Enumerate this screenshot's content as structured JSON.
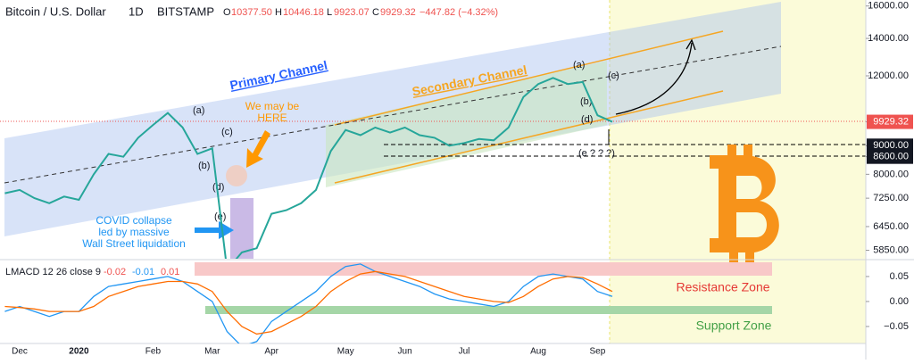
{
  "chart_data": [
    {
      "type": "line",
      "log": true,
      "header": {
        "title": "Bitcoin / U.S. Dollar",
        "interval": "1D",
        "exchange": "BITSTAMP",
        "ohlc": [
          {
            "key": "O",
            "text": "10377.50"
          },
          {
            "key": "H",
            "text": "10446.18"
          },
          {
            "key": "L",
            "text": "9923.07"
          },
          {
            "key": "C",
            "text": "9929.32"
          }
        ],
        "change": "−447.82 (−4.32%)"
      },
      "categories": [
        null,
        "Dec",
        null,
        null,
        null,
        "2020",
        null,
        null,
        null,
        null,
        "Feb",
        null,
        null,
        null,
        "Mar",
        null,
        null,
        null,
        "Apr",
        null,
        null,
        null,
        null,
        "May",
        null,
        null,
        null,
        "Jun",
        null,
        null,
        null,
        "Jul",
        null,
        null,
        null,
        null,
        "Aug",
        null,
        null,
        null,
        "Sep",
        null
      ],
      "values": [
        7400,
        7500,
        7250,
        7100,
        7300,
        7200,
        8000,
        8700,
        8600,
        9300,
        9800,
        10300,
        9700,
        8700,
        8900,
        5400,
        5800,
        5900,
        6800,
        6900,
        7100,
        7500,
        8800,
        9600,
        9400,
        9700,
        9500,
        9700,
        9400,
        9300,
        9000,
        9100,
        9250,
        9200,
        9700,
        11000,
        11600,
        11900,
        11600,
        11700,
        10200,
        9929.32
      ],
      "color": "#26a69a",
      "ylim": [
        5650,
        16400
      ],
      "yticks": [
        {
          "value": 16000,
          "label": "16000.00"
        },
        {
          "value": 14000,
          "label": "14000.00"
        },
        {
          "value": 12000,
          "label": "12000.00"
        },
        {
          "value": 9929.32,
          "label": "9929.32",
          "color": "#ef5350"
        },
        {
          "value": 9000,
          "label": "9000.00",
          "color": "#131722"
        },
        {
          "value": 8600,
          "label": "8600.00",
          "color": "#131722"
        },
        {
          "value": 8000,
          "label": "8000.00"
        },
        {
          "value": 7250,
          "label": "7250.00"
        },
        {
          "value": 6450,
          "label": "6450.00"
        },
        {
          "value": 5850,
          "label": "5850.00"
        }
      ],
      "annotations": [
        "Primary Channel",
        "Secondary Channel",
        "We may be",
        "HERE",
        "COVID collapse",
        "led by massive",
        "Wall Street liquidation",
        "(a)",
        "(b)",
        "(c)",
        "(d)",
        "(e)",
        "(a)",
        "(b)",
        "(c)",
        "(d)",
        "(e ? ? ?)",
        "Resistance Zone",
        "Support Zone"
      ]
    },
    {
      "type": "line",
      "title": "LMACD 12 26 close 9",
      "readouts": [
        {
          "value": -0.02,
          "color": "#ef5350"
        },
        {
          "value": -0.01,
          "color": "#2196f3"
        },
        {
          "value": 0.01,
          "color": "#ef5350"
        }
      ],
      "series": [
        {
          "color": "#2196f3",
          "values": [
            -0.02,
            -0.01,
            -0.02,
            -0.03,
            -0.02,
            -0.02,
            0.01,
            0.03,
            0.035,
            0.04,
            0.045,
            0.05,
            0.04,
            0.02,
            0.0,
            -0.06,
            -0.09,
            -0.08,
            -0.04,
            -0.02,
            0.0,
            0.02,
            0.05,
            0.07,
            0.075,
            0.06,
            0.05,
            0.04,
            0.03,
            0.015,
            0.005,
            0.0,
            -0.005,
            -0.01,
            0.0,
            0.03,
            0.05,
            0.055,
            0.05,
            0.045,
            0.02,
            0.01
          ]
        },
        {
          "color": "#ff6d00",
          "values": [
            -0.01,
            -0.012,
            -0.015,
            -0.02,
            -0.02,
            -0.02,
            -0.01,
            0.01,
            0.02,
            0.03,
            0.035,
            0.04,
            0.04,
            0.035,
            0.02,
            -0.02,
            -0.05,
            -0.065,
            -0.06,
            -0.045,
            -0.03,
            -0.01,
            0.02,
            0.04,
            0.055,
            0.06,
            0.055,
            0.05,
            0.04,
            0.03,
            0.02,
            0.01,
            0.005,
            0.0,
            -0.002,
            0.01,
            0.03,
            0.045,
            0.05,
            0.048,
            0.035,
            0.02
          ]
        }
      ],
      "ylim": [
        -0.084,
        0.082
      ],
      "yticks": [
        {
          "value": 0.05,
          "label": "0.05"
        },
        {
          "value": 0,
          "label": "0.00"
        },
        {
          "value": -0.05,
          "label": "−0.05"
        }
      ]
    }
  ]
}
